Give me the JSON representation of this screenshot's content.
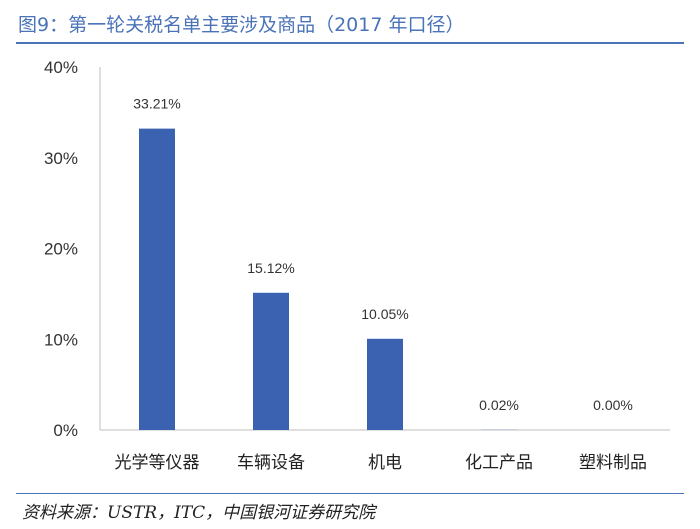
{
  "figure": {
    "title": "图9：第一轮关税名单主要涉及商品（2017 年口径）",
    "source": "资料来源：USTR，ITC，中国银河证券研究院"
  },
  "colors": {
    "bar": "#3a62b0",
    "rule": "#4a73b8",
    "axis": "#bfbfbf"
  },
  "chart_data": {
    "type": "bar",
    "title": "",
    "xlabel": "",
    "ylabel": "",
    "categories": [
      "光学等仪器",
      "车辆设备",
      "机电",
      "化工产品",
      "塑料制品"
    ],
    "values": [
      33.21,
      15.12,
      10.05,
      0.02,
      0.0
    ],
    "data_labels": [
      "33.21%",
      "15.12%",
      "10.05%",
      "0.02%",
      "0.00%"
    ],
    "y_ticks": [
      0,
      10,
      20,
      30,
      40
    ],
    "y_tick_labels": [
      "0%",
      "10%",
      "20%",
      "30%",
      "40%"
    ],
    "ylim": [
      0,
      40
    ],
    "grid": false,
    "legend": "none"
  }
}
